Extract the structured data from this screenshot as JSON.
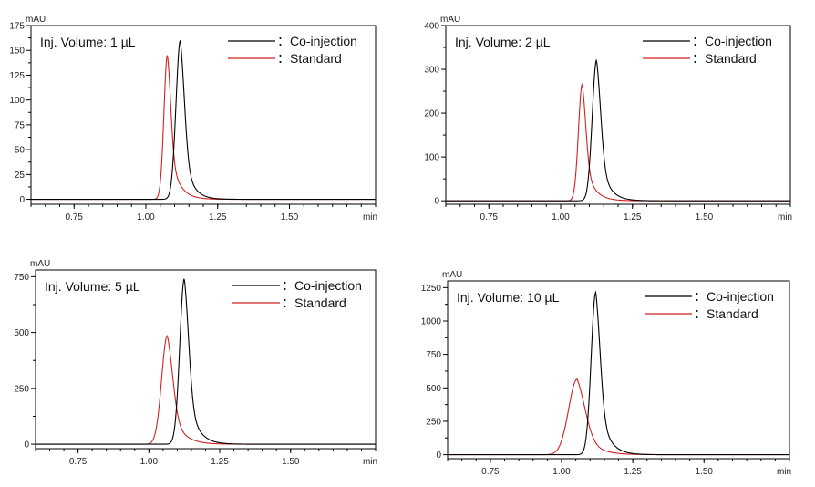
{
  "chart_data": [
    {
      "type": "line",
      "title": "Inj. Volume: 1 µL",
      "ylabel": "mAU",
      "xlabel": "min",
      "xlim": [
        0.6,
        1.8
      ],
      "ylim": [
        -5,
        175
      ],
      "yticks": [
        0,
        25,
        50,
        75,
        100,
        125,
        150,
        175
      ],
      "ytick_labels": [
        "0",
        "25",
        "50",
        "75",
        "100",
        "125",
        "150",
        "175"
      ],
      "xticks": [
        0.75,
        1.0,
        1.25,
        1.5
      ],
      "xtick_labels": [
        "0.75",
        "1.00",
        "1.25",
        "1.50"
      ],
      "legend_position": "top-right",
      "series": [
        {
          "name": "：Co-injection",
          "color": "#000000",
          "peak_time": 1.12,
          "peak_height": 160,
          "sigma": 0.015,
          "tail": 0.028
        },
        {
          "name": "：Standard",
          "color": "#d42020",
          "peak_time": 1.075,
          "peak_height": 145,
          "sigma": 0.012,
          "tail": 0.03
        }
      ]
    },
    {
      "type": "line",
      "title": "Inj. Volume: 2 µL",
      "ylabel": "mAU",
      "xlabel": "min",
      "xlim": [
        0.6,
        1.8
      ],
      "ylim": [
        -8,
        400
      ],
      "yticks": [
        0,
        100,
        200,
        300,
        400
      ],
      "ytick_labels": [
        "0",
        "100",
        "200",
        "300",
        "400"
      ],
      "xticks": [
        0.75,
        1.0,
        1.25,
        1.5
      ],
      "xtick_labels": [
        "0.75",
        "1.00",
        "1.25",
        "1.50"
      ],
      "legend_position": "top-right",
      "series": [
        {
          "name": "：Co-injection",
          "color": "#000000",
          "peak_time": 1.125,
          "peak_height": 320,
          "sigma": 0.015,
          "tail": 0.03
        },
        {
          "name": "：Standard",
          "color": "#d42020",
          "peak_time": 1.075,
          "peak_height": 265,
          "sigma": 0.013,
          "tail": 0.03
        }
      ]
    },
    {
      "type": "line",
      "title": "Inj. Volume: 5 µL",
      "ylabel": "mAU",
      "xlabel": "min",
      "xlim": [
        0.6,
        1.8
      ],
      "ylim": [
        -20,
        780
      ],
      "yticks": [
        0,
        250,
        500,
        750
      ],
      "ytick_labels": [
        "0",
        "250",
        "500",
        "750"
      ],
      "xticks": [
        0.75,
        1.0,
        1.25,
        1.5
      ],
      "xtick_labels": [
        "0.75",
        "1.00",
        "1.25",
        "1.50"
      ],
      "legend_position": "top-right",
      "series": [
        {
          "name": "：Co-injection",
          "color": "#000000",
          "peak_time": 1.125,
          "peak_height": 740,
          "sigma": 0.016,
          "tail": 0.032
        },
        {
          "name": "：Standard",
          "color": "#d42020",
          "peak_time": 1.065,
          "peak_height": 485,
          "sigma": 0.02,
          "tail": 0.038
        }
      ]
    },
    {
      "type": "line",
      "title": "Inj. Volume: 10 µL",
      "ylabel": "mAU",
      "xlabel": "min",
      "xlim": [
        0.6,
        1.8
      ],
      "ylim": [
        -30,
        1300
      ],
      "yticks": [
        0,
        250,
        500,
        750,
        1000,
        1250
      ],
      "ytick_labels": [
        "0",
        "250",
        "500",
        "750",
        "1000",
        "1250"
      ],
      "xticks": [
        0.75,
        1.0,
        1.25,
        1.5
      ],
      "xtick_labels": [
        "0.75",
        "1.00",
        "1.25",
        "1.50"
      ],
      "legend_position": "top-right",
      "series": [
        {
          "name": "：Co-injection",
          "color": "#000000",
          "peak_time": 1.12,
          "peak_height": 1215,
          "sigma": 0.016,
          "tail": 0.032
        },
        {
          "name": "：Standard",
          "color": "#d42020",
          "peak_time": 1.055,
          "peak_height": 565,
          "sigma": 0.03,
          "tail": 0.045
        }
      ]
    }
  ]
}
